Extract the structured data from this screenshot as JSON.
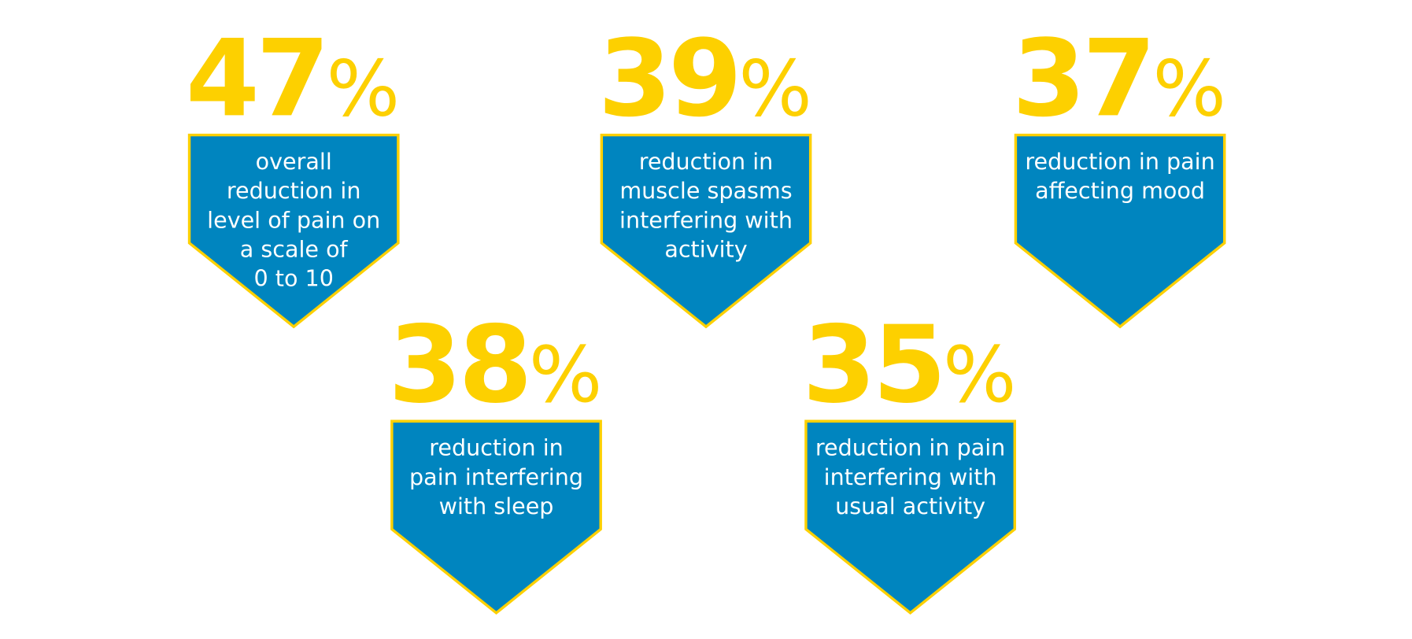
{
  "items": [
    {
      "value": 47,
      "unit": "%",
      "lines": [
        "overall",
        "reduction in",
        "level of pain on",
        "a scale of",
        "0 to 10"
      ]
    },
    {
      "value": 39,
      "unit": "%",
      "lines": [
        "reduction in",
        "muscle spasms",
        "interfering with",
        "activity"
      ]
    },
    {
      "value": 37,
      "unit": "%",
      "lines": [
        "reduction in pain",
        "affecting mood"
      ]
    },
    {
      "value": 38,
      "unit": "%",
      "lines": [
        "reduction in",
        "pain interfering",
        "with sleep"
      ]
    },
    {
      "value": 35,
      "unit": "%",
      "lines": [
        "reduction in pain",
        "interfering with",
        "usual activity"
      ]
    }
  ]
}
